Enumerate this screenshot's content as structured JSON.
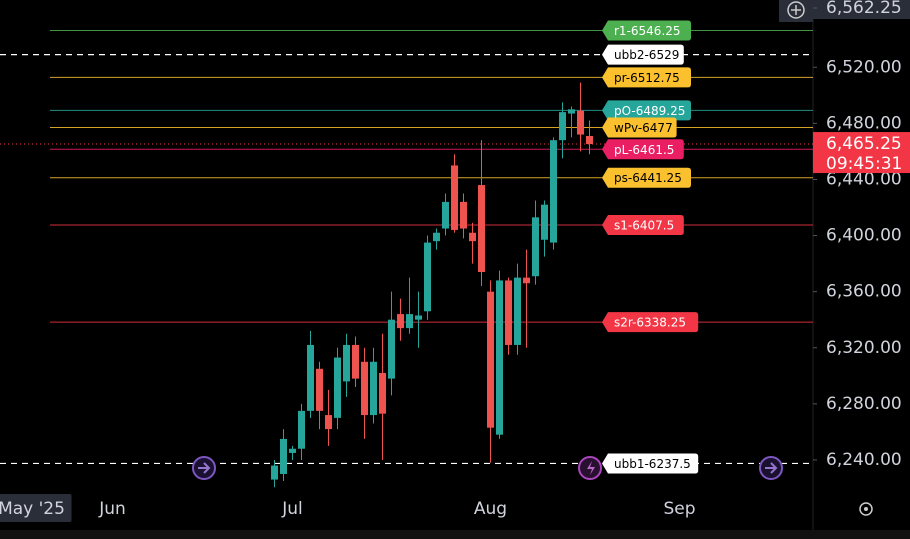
{
  "chart_data": {
    "type": "candlestick",
    "categories": [
      null,
      null,
      null,
      "May '25",
      null,
      null,
      null,
      null,
      null,
      null,
      null,
      null,
      "Jun",
      null,
      null,
      null,
      null,
      null,
      null,
      null,
      null,
      null,
      null,
      null,
      null,
      null,
      null,
      null,
      null,
      null,
      null,
      null,
      "Jul",
      null,
      null,
      null,
      null,
      null,
      null,
      null,
      null,
      null,
      null,
      null,
      null,
      null,
      null,
      null,
      null,
      null,
      null,
      null,
      null,
      null,
      "Aug",
      null,
      null,
      null,
      null,
      null,
      null,
      null,
      null,
      null,
      null,
      null,
      null,
      null,
      null,
      null,
      null,
      null,
      null,
      null,
      null,
      "Sep",
      null,
      null,
      null,
      null,
      null,
      null,
      null,
      null,
      null,
      null,
      null,
      null,
      null,
      null
    ],
    "open": [
      null,
      null,
      null,
      null,
      null,
      null,
      null,
      null,
      null,
      null,
      null,
      null,
      null,
      null,
      null,
      null,
      null,
      null,
      null,
      null,
      null,
      null,
      null,
      null,
      null,
      null,
      null,
      null,
      null,
      null,
      6226,
      6230,
      6245,
      6248,
      6275,
      6305,
      6272,
      6270,
      6296,
      6322,
      6310,
      6272,
      6302,
      6298,
      6344,
      6334,
      6340,
      6346,
      6396,
      6405,
      6450,
      6424,
      6402,
      6436,
      6360,
      6258,
      6368,
      6322,
      6370,
      6371,
      6397,
      6395,
      6468,
      6487,
      6489,
      6471,
      null,
      null,
      null,
      null,
      null,
      null,
      null,
      null,
      null,
      null,
      null,
      null,
      null,
      null,
      null,
      null,
      null,
      null,
      null,
      null,
      null,
      null,
      null,
      null
    ],
    "high": [
      null,
      null,
      null,
      null,
      null,
      null,
      null,
      null,
      null,
      null,
      null,
      null,
      null,
      null,
      null,
      null,
      null,
      null,
      null,
      null,
      null,
      null,
      null,
      null,
      null,
      null,
      null,
      null,
      null,
      null,
      6240,
      6262,
      6250,
      6280,
      6332,
      6310,
      6290,
      6320,
      6330,
      6328,
      6320,
      6320,
      6330,
      6360,
      6355,
      6370,
      6360,
      6400,
      6405,
      6430,
      6458,
      6430,
      6409,
      6468,
      6368,
      6375,
      6370,
      6380,
      6390,
      6425,
      6425,
      6470,
      6495,
      6492,
      6509,
      6482,
      null,
      null,
      null,
      null,
      null,
      null,
      null,
      null,
      null,
      null,
      null,
      null,
      null,
      null,
      null,
      null,
      null,
      null,
      null,
      null,
      null,
      null,
      null,
      null
    ],
    "low": [
      null,
      null,
      null,
      null,
      null,
      null,
      null,
      null,
      null,
      null,
      null,
      null,
      null,
      null,
      null,
      null,
      null,
      null,
      null,
      null,
      null,
      null,
      null,
      null,
      null,
      null,
      null,
      null,
      null,
      null,
      6220.5,
      6225,
      6240,
      6240,
      6270,
      6262,
      6250,
      6262,
      6285,
      6292,
      6255,
      6266,
      6240,
      6286,
      6325,
      6330,
      6320,
      6340,
      6390,
      6400,
      6402,
      6398,
      6380,
      6364,
      6238,
      6255,
      6315,
      6315,
      6320,
      6365,
      6385,
      6390,
      6455,
      6470,
      6460,
      6458,
      null,
      null,
      null,
      null,
      null,
      null,
      null,
      null,
      null,
      null,
      null,
      null,
      null,
      null,
      null,
      null,
      null,
      null,
      null,
      null,
      null,
      null,
      null,
      null
    ],
    "close": [
      null,
      null,
      null,
      null,
      null,
      null,
      null,
      null,
      null,
      null,
      null,
      null,
      null,
      null,
      null,
      null,
      null,
      null,
      null,
      null,
      null,
      null,
      null,
      null,
      null,
      null,
      null,
      null,
      null,
      null,
      6236,
      6255,
      6248,
      6275,
      6322,
      6275,
      6262,
      6313,
      6322,
      6298,
      6272,
      6310,
      6273,
      6340,
      6334,
      6344,
      6343,
      6395,
      6402,
      6424,
      6404,
      6405,
      6396,
      6374,
      6263,
      6368,
      6322,
      6370,
      6366,
      6413,
      6422,
      6468,
      6488,
      6490,
      6472,
      6465.25,
      null,
      null,
      null,
      null,
      null,
      null,
      null,
      null,
      null,
      null,
      null,
      null,
      null,
      null,
      null,
      null,
      null,
      null,
      null,
      null,
      null,
      null,
      null,
      null
    ],
    "up_color": "#26a69a",
    "down_color": "#ef5350",
    "ylim": [
      6220,
      6562.25
    ],
    "yticks": [
      {
        "value": 6240,
        "label": "6,240.00"
      },
      {
        "value": 6280,
        "label": "6,280.00"
      },
      {
        "value": 6320,
        "label": "6,320.00"
      },
      {
        "value": 6360,
        "label": "6,360.00"
      },
      {
        "value": 6400,
        "label": "6,400.00"
      },
      {
        "value": 6440,
        "label": "6,440.00"
      },
      {
        "value": 6480,
        "label": "6,480.00"
      },
      {
        "value": 6520,
        "label": "6,520.00"
      },
      {
        "value": 6562.25,
        "label": "6,562.25"
      }
    ],
    "levels": [
      {
        "label": "r1-6546.25",
        "value": 6546.25,
        "color": "#4caf50",
        "text_color": "#ffffff",
        "dashed": false
      },
      {
        "label": "ubb2-6529",
        "value": 6529,
        "color": "#ffffff",
        "text_color": "#000000",
        "dashed": true
      },
      {
        "label": "pr-6512.75",
        "value": 6512.75,
        "color": "#fbc02d",
        "text_color": "#000000",
        "dashed": false
      },
      {
        "label": "pO-6489.25",
        "value": 6489.25,
        "color": "#26a69a",
        "text_color": "#ffffff",
        "dashed": false
      },
      {
        "label": "pL-6461.5",
        "value": 6461.5,
        "color": "#e91e63",
        "text_color": "#ffffff",
        "dashed": false
      },
      {
        "label": "wPv-6477",
        "value": 6477,
        "color": "#fbc02d",
        "text_color": "#000000",
        "dashed": false
      },
      {
        "label": "ps-6441.25",
        "value": 6441.25,
        "color": "#fbc02d",
        "text_color": "#000000",
        "dashed": false
      },
      {
        "label": "s1-6407.5",
        "value": 6407.5,
        "color": "#f23645",
        "text_color": "#ffffff",
        "dashed": false
      },
      {
        "label": "s2r-6338.25",
        "value": 6338.25,
        "color": "#f23645",
        "text_color": "#ffffff",
        "dashed": false
      },
      {
        "label": "ubb1-6237.5",
        "value": 6237.5,
        "color": "#ffffff",
        "text_color": "#000000",
        "dashed": true
      }
    ],
    "last_price": {
      "value": 6465.25,
      "label": "6,465.25"
    },
    "countdown": "09:45:31"
  }
}
